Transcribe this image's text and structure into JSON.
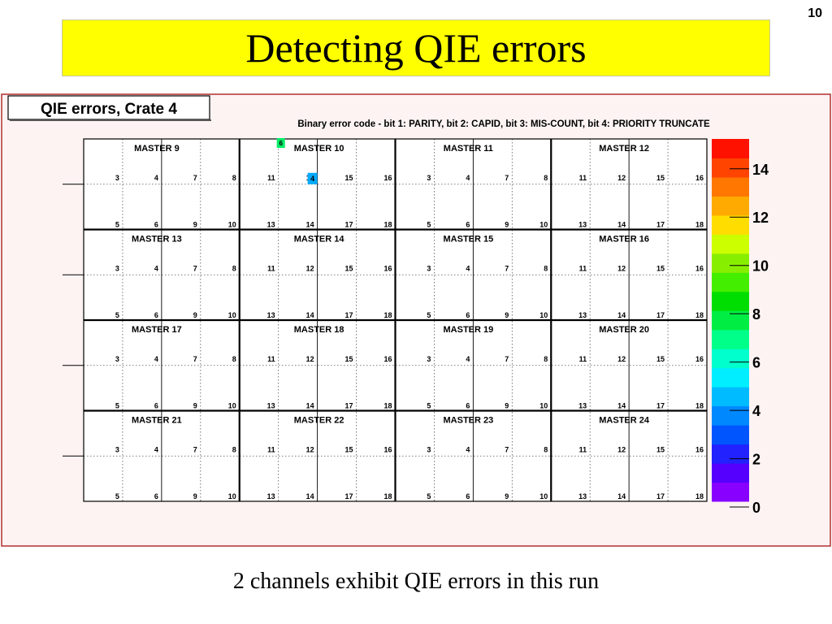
{
  "slide": {
    "number": "10",
    "title": "Detecting QIE errors",
    "caption": "2 channels exhibit QIE errors in this run"
  },
  "chart_data": {
    "type": "heatmap",
    "title": "QIE errors, Crate 4",
    "subtitle": "Binary error code -  bit 1: PARITY,  bit 2: CAPID,  bit 3: MIS-COUNT,  bit 4: PRIORITY TRUNCATE",
    "masters": [
      [
        "MASTER 9",
        "MASTER 10",
        "MASTER 11",
        "MASTER 12"
      ],
      [
        "MASTER 13",
        "MASTER 14",
        "MASTER 15",
        "MASTER 16"
      ],
      [
        "MASTER 17",
        "MASTER 18",
        "MASTER 19",
        "MASTER 20"
      ],
      [
        "MASTER 21",
        "MASTER 22",
        "MASTER 23",
        "MASTER 24"
      ]
    ],
    "slot_labels_top": [
      "3",
      "4",
      "7",
      "8",
      "11",
      "12",
      "15",
      "16"
    ],
    "slot_labels_bottom": [
      "5",
      "6",
      "9",
      "10",
      "13",
      "14",
      "17",
      "18"
    ],
    "errors": [
      {
        "master": "MASTER 10",
        "value": 6,
        "label": "6",
        "color": "#00ee66"
      },
      {
        "master": "MASTER 10",
        "value": 4,
        "label": "4",
        "color": "#00aaff"
      }
    ],
    "colorscale": {
      "range": [
        0,
        15
      ],
      "tick_labels": [
        "0",
        "2",
        "4",
        "6",
        "8",
        "10",
        "12",
        "14"
      ],
      "colors": [
        "#8800ff",
        "#5500ff",
        "#2222ff",
        "#0055ff",
        "#0088ff",
        "#00bbff",
        "#00eeff",
        "#00ffcc",
        "#00ff88",
        "#00ee44",
        "#00dd00",
        "#44ee00",
        "#88ee00",
        "#ccff00",
        "#ffdd00",
        "#ffaa00",
        "#ff7700",
        "#ff4400",
        "#ff1100"
      ]
    }
  }
}
